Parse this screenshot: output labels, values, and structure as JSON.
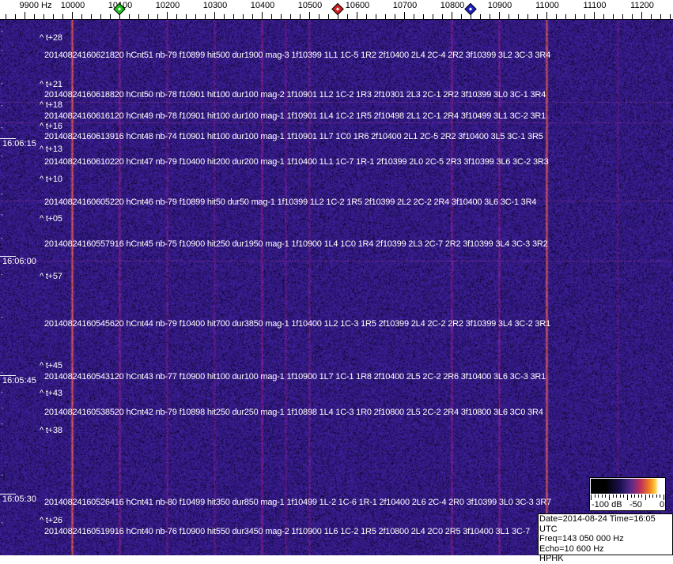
{
  "axis": {
    "unit_label": "9900 Hz",
    "ticks": [
      "10000",
      "10100",
      "10200",
      "10300",
      "10400",
      "10500",
      "10600",
      "10700",
      "10800",
      "10900",
      "11000",
      "11100",
      "11200"
    ],
    "markers": [
      {
        "name": "green",
        "freq_hz": 10100,
        "color": "#20c020"
      },
      {
        "name": "red",
        "freq_hz": 10560,
        "color": "#d02020"
      },
      {
        "name": "blue",
        "freq_hz": 10840,
        "color": "#2020c0"
      }
    ]
  },
  "colors": {
    "background": "#24157a",
    "strong_line": "#e07040",
    "weak_line": "#9030a0"
  },
  "time_labels": [
    "16:06:15",
    "16:06:00",
    "16:05:45",
    "16:05:30"
  ],
  "offset_labels": [
    "^ t+28",
    "^ t+21",
    "^ t+18",
    "^ t+16",
    "^ t+13",
    "^ t+10",
    "^ t+05",
    "^ t+57",
    "^ t+45",
    "^ t+43",
    "^ t+38",
    "^ t+26"
  ],
  "detections": [
    "20140824160621820 hCnt51 nb-79 f10899 hit500 dur1900 mag-3 1f10399 1L1 1C-5 1R2 2f10400 2L4 2C-4 2R2 3f10399 3L2 3C-3 3R4",
    "20140824160618820 hCnt50 nb-78 f10901 hit100 dur100 mag-2 1f10901 1L2 1C-2 1R3 2f10301 2L3 2C-1 2R2 3f10399 3L0 3C-1 3R4",
    "20140824160616120 hCnt49 nb-78 f10901 hit100 dur100 mag-1 1f10901 1L4 1C-2 1R5 2f10498 2L1 2C-1 2R4 3f10499 3L1 3C-2 3R1",
    "20140824160613916 hCnt48 nb-74 f10901 hit100 dur100 mag-1 1f10901 1L7 1C0 1R6 2f10400 2L1 2C-5 2R2 3f10400 3L5 3C-1 3R5",
    "20140824160610220 hCnt47 nb-79 f10400 hit200 dur200 mag-1 1f10400 1L1 1C-7 1R-1 2f10399 2L0 2C-5 2R3 3f10399 3L6 3C-2 3R3",
    "20140824160605220 hCnt46 nb-79 f10899 hit50 dur50 mag-1 1f10399 1L2 1C-2 1R5 2f10399 2L2 2C-2 2R4 3f10400 3L6 3C-1 3R4",
    "20140824160557916 hCnt45 nb-75 f10900 hit250 dur1950 mag-1 1f10900 1L4 1C0 1R4 2f10399 2L3 2C-7 2R2 3f10399 3L4 3C-3 3R2",
    "20140824160545620 hCnt44 nb-79 f10400 hit700 dur3850 mag-1 1f10400 1L2 1C-3 1R5 2f10399 2L4 2C-2 2R2 3f10399 3L4 3C-2 3R1",
    "20140824160543120 hCnt43 nb-77 f10900 hit100 dur100 mag-1 1f10900 1L7 1C-1 1R8 2f10400 2L5 2C-2 2R6 3f10400 3L6 3C-3 3R1",
    "20140824160538520 hCnt42 nb-79 f10898 hit250 dur250 mag-1 1f10898 1L4 1C-3 1R0 2f10800 2L5 2C-2 2R4 3f10800 3L6 3C0 3R4",
    "20140824160526416 hCnt41 nb-80 f10499 hit350 dur850 mag-1 1f10499 1L-2 1C-6 1R-1 2f10400 2L6 2C-4 2R0 3f10399 3L0 3C-3 3R7",
    "20140824160519916 hCnt40 nb-76 f10900 hit550 dur3450 mag-2 1f10900 1L6 1C-2 1R5 2f10800 2L4 2C0 2R5 3f10400 3L1 3C-7"
  ],
  "colorbar": {
    "labels": [
      "-100 dB",
      "-50",
      "0"
    ]
  },
  "info": {
    "date_time": "Date=2014-08-24 Time=16:05 UTC",
    "freq": "Freq=143 050 000 Hz",
    "echo": "Echo=10 600 Hz",
    "station": "HPHK"
  }
}
